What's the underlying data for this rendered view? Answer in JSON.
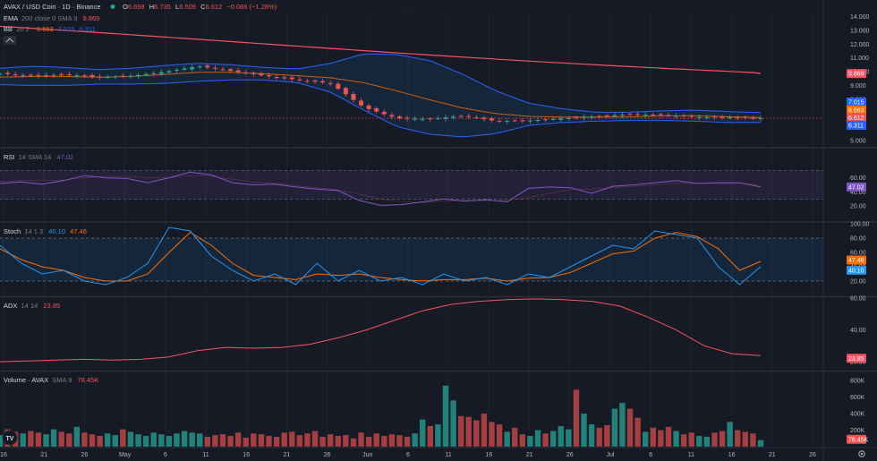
{
  "header": {
    "symbol": "AVAX / USD Coin · 1D · Binance",
    "open_label": "O",
    "open": "6.698",
    "high_label": "H",
    "high": "6.735",
    "low_label": "L",
    "low": "6.509",
    "close_label": "C",
    "close": "6.612",
    "change": "−0.086 (−1.28%)"
  },
  "indicators": {
    "ema": {
      "name": "EMA",
      "params": "200 close 0 SMA 9",
      "value": "9.869"
    },
    "bb": {
      "name": "BB",
      "params": "20 2",
      "basis": "6.663",
      "upper": "7.015",
      "lower": "6.311"
    },
    "rsi": {
      "name": "RSI",
      "params": "14 SMA 14",
      "value": "47.02"
    },
    "stoch": {
      "name": "Stoch",
      "params": "14 1 3",
      "k": "40.10",
      "d": "47.46"
    },
    "adx": {
      "name": "ADX",
      "params": "14 14",
      "value": "23.85"
    },
    "volume": {
      "name": "Volume · AVAX",
      "params": "SMA 9",
      "value": "78.45K"
    }
  },
  "colors": {
    "background": "#161a25",
    "up": "#26a69a",
    "down": "#ef5350",
    "ema": "#f7525f",
    "bb_basis": "#ff6d00",
    "bb_band": "#2962ff",
    "rsi": "#7e57c2",
    "stoch_k": "#2196f3",
    "stoch_d": "#ff6d00",
    "adx": "#f7525f"
  },
  "chart_data": {
    "type": "candlestick",
    "price_axis": {
      "range": [
        4.6,
        14.3
      ],
      "ticks": [
        "14.000",
        "13.000",
        "12.000",
        "11.000",
        "10.000",
        "9.000",
        "8.000",
        "7.000",
        "6.000",
        "5.000"
      ]
    },
    "x_axis": {
      "labels": [
        "16",
        "21",
        "26",
        "May",
        "6",
        "11",
        "16",
        "21",
        "26",
        "Jun",
        "6",
        "11",
        "16",
        "21",
        "26",
        "Jul",
        "6",
        "11",
        "16",
        "21",
        "26"
      ]
    },
    "value_tags": [
      {
        "name": "ema",
        "value": "9.869"
      },
      {
        "name": "bb_upper",
        "value": "7.015"
      },
      {
        "name": "bb_basis",
        "value": "6.663"
      },
      {
        "name": "close",
        "value": "6.612"
      },
      {
        "name": "bb_lower",
        "value": "6.311"
      }
    ],
    "ema_series": {
      "start": 13.3,
      "end": 9.869
    },
    "bb_upper_profile": [
      10.25,
      10.4,
      10.3,
      10.15,
      10.25,
      10.45,
      10.6,
      10.5,
      10.3,
      10.2,
      10.6,
      11.3,
      11.25,
      10.8,
      9.8,
      8.6,
      7.7,
      7.3,
      7.05,
      7.05,
      7.15,
      7.2,
      7.1,
      7.02
    ],
    "bb_basis_profile": [
      9.6,
      9.65,
      9.65,
      9.6,
      9.65,
      9.8,
      9.95,
      9.95,
      9.85,
      9.7,
      9.55,
      9.2,
      8.6,
      7.95,
      7.35,
      6.95,
      6.75,
      6.7,
      6.7,
      6.72,
      6.78,
      6.8,
      6.72,
      6.66
    ],
    "bb_lower_profile": [
      9.05,
      9.0,
      9.0,
      9.1,
      9.1,
      9.15,
      9.3,
      9.4,
      9.4,
      9.2,
      8.5,
      7.2,
      6.0,
      5.45,
      5.25,
      5.5,
      6.1,
      6.3,
      6.4,
      6.45,
      6.45,
      6.4,
      6.3,
      6.31
    ],
    "close_profile": [
      9.85,
      9.7,
      9.8,
      9.6,
      9.7,
      10.0,
      10.4,
      10.05,
      9.7,
      9.4,
      9.15,
      7.4,
      6.6,
      6.55,
      6.8,
      6.4,
      6.45,
      6.6,
      6.75,
      6.9,
      6.85,
      6.7,
      6.68,
      6.612
    ],
    "rsi": {
      "range": [
        0,
        100
      ],
      "ticks": [
        "60.00",
        "40.00",
        "20.00"
      ],
      "upper": 70,
      "lower": 30,
      "values": [
        52,
        54,
        51,
        56,
        63,
        60,
        59,
        53,
        60,
        68,
        64,
        53,
        50,
        51,
        47,
        44,
        42,
        28,
        21,
        22,
        26,
        30,
        27,
        29,
        26,
        45,
        47,
        46,
        38,
        48,
        50,
        53,
        56,
        52,
        53,
        53,
        47.02
      ],
      "sma_values": [
        55,
        56,
        56,
        57,
        60,
        62,
        62,
        60,
        60,
        63,
        62,
        58,
        54,
        52,
        49,
        46,
        43,
        37,
        30,
        26,
        25,
        27,
        28,
        28,
        28,
        32,
        38,
        43,
        44,
        46,
        48,
        50,
        52,
        52,
        52,
        52,
        50
      ]
    },
    "stoch": {
      "range": [
        0,
        100
      ],
      "ticks": [
        "100.00",
        "80.00",
        "60.00",
        "40.00",
        "20.00"
      ],
      "upper": 80,
      "lower": 20,
      "k_values": [
        70,
        45,
        30,
        35,
        20,
        15,
        25,
        45,
        95,
        90,
        55,
        35,
        20,
        30,
        15,
        45,
        20,
        35,
        20,
        25,
        15,
        30,
        20,
        25,
        15,
        30,
        25,
        40,
        55,
        70,
        65,
        90,
        85,
        80,
        40,
        15,
        40.1
      ],
      "d_values": [
        65,
        50,
        40,
        35,
        25,
        20,
        20,
        30,
        60,
        88,
        70,
        45,
        28,
        25,
        22,
        30,
        28,
        30,
        25,
        22,
        20,
        22,
        22,
        24,
        20,
        24,
        25,
        32,
        45,
        58,
        62,
        80,
        88,
        82,
        65,
        35,
        47.46
      ]
    },
    "adx": {
      "range": [
        15,
        60
      ],
      "ticks": [
        "60.00",
        "40.00",
        "20.00"
      ],
      "values": [
        20,
        20.5,
        21,
        21.5,
        21,
        21.5,
        23,
        27,
        29,
        28.5,
        29,
        31,
        35,
        40,
        46,
        52,
        56,
        58,
        59,
        59.5,
        59,
        58,
        55,
        48,
        40,
        30,
        25,
        23.85
      ]
    },
    "volume": {
      "range": [
        0,
        900
      ],
      "unit": "K",
      "ticks": [
        "800K",
        "600K",
        "400K",
        "200K"
      ],
      "value_tag": "78.45K",
      "values": [
        140,
        210,
        180,
        160,
        190,
        170,
        150,
        210,
        180,
        160,
        240,
        170,
        150,
        130,
        160,
        140,
        210,
        180,
        150,
        130,
        170,
        150,
        130,
        160,
        190,
        170,
        160,
        120,
        140,
        150,
        130,
        170,
        110,
        160,
        150,
        130,
        120,
        170,
        180,
        140,
        160,
        190,
        120,
        150,
        130,
        140,
        100,
        170,
        120,
        160,
        130,
        150,
        140,
        120,
        160,
        330,
        250,
        270,
        740,
        560,
        370,
        360,
        320,
        400,
        300,
        270,
        180,
        230,
        150,
        130,
        200,
        160,
        190,
        250,
        210,
        690,
        400,
        270,
        230,
        260,
        460,
        530,
        460,
        350,
        180,
        230,
        200,
        240,
        190,
        150,
        170,
        130,
        120,
        170,
        190,
        300,
        200,
        180,
        160,
        80
      ]
    }
  },
  "ui": {
    "logo": "TV",
    "settings_icon": "gear-icon",
    "visibility_icon": "eye-icon"
  }
}
